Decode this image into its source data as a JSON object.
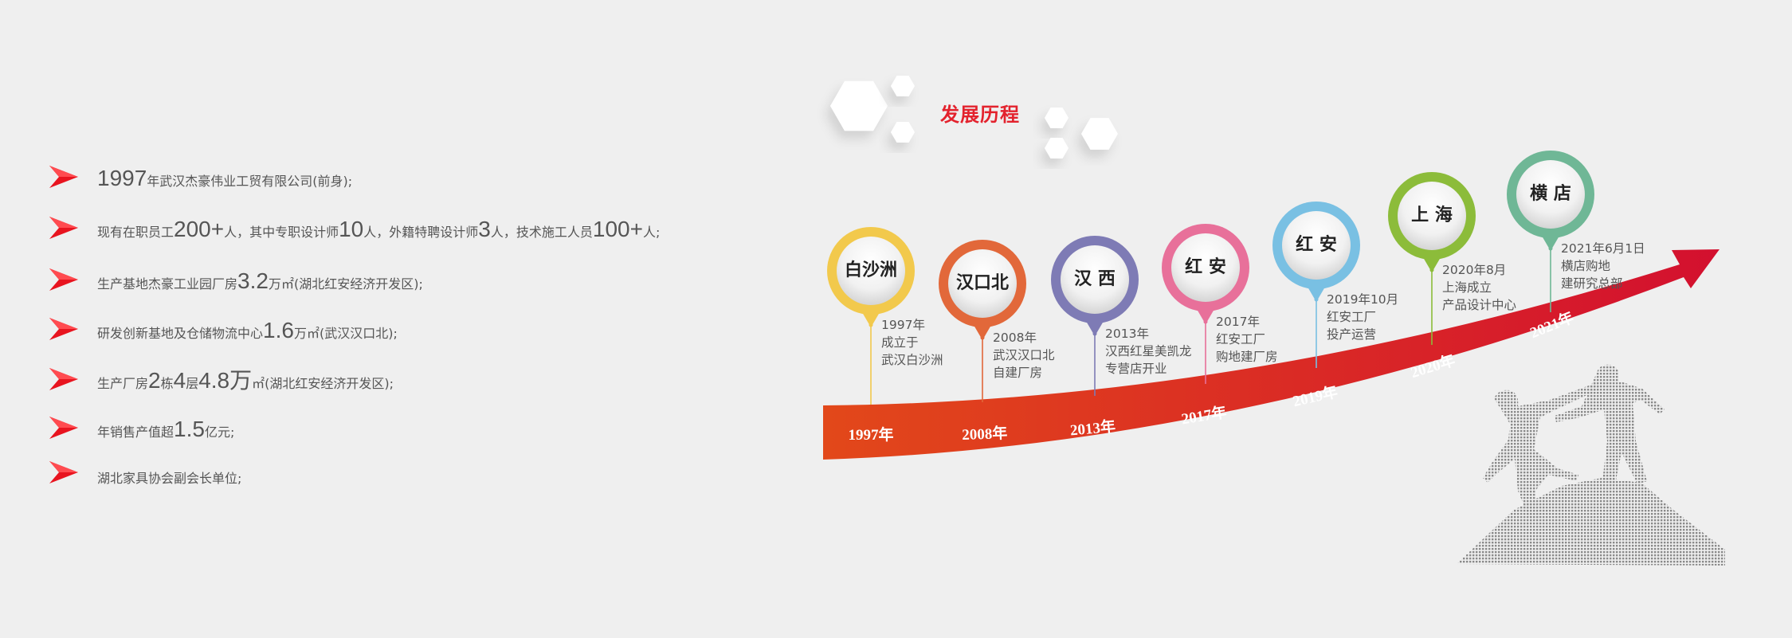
{
  "bullets": [
    {
      "parts": [
        {
          "t": "1997",
          "big": true
        },
        {
          "t": "年武汉杰豪伟业工贸有限公司(前身);"
        }
      ]
    },
    {
      "parts": [
        {
          "t": "现有在职员工"
        },
        {
          "t": "200+",
          "big": true
        },
        {
          "t": "人，其中专职设计师"
        },
        {
          "t": "10",
          "big": true
        },
        {
          "t": "人，外籍特聘设计师"
        },
        {
          "t": "3",
          "big": true
        },
        {
          "t": "人，技术施工人员"
        },
        {
          "t": "100+",
          "big": true
        },
        {
          "t": "人;"
        }
      ]
    },
    {
      "parts": [
        {
          "t": "生产基地杰豪工业园厂房"
        },
        {
          "t": "3.2",
          "big": true
        },
        {
          "t": "万㎡(湖北红安经济开发区);"
        }
      ]
    },
    {
      "parts": [
        {
          "t": "研发创新基地及仓储物流中心"
        },
        {
          "t": "1.6",
          "big": true
        },
        {
          "t": "万㎡(武汉汉口北);"
        }
      ]
    },
    {
      "parts": [
        {
          "t": "生产厂房"
        },
        {
          "t": "2",
          "big": true
        },
        {
          "t": "栋"
        },
        {
          "t": "4",
          "big": true
        },
        {
          "t": "层"
        },
        {
          "t": "4.8万",
          "big": true
        },
        {
          "t": "㎡(湖北红安经济开发区);"
        }
      ]
    },
    {
      "parts": [
        {
          "t": "年销售产值超"
        },
        {
          "t": "1.5",
          "big": true
        },
        {
          "t": "亿元;"
        }
      ]
    },
    {
      "parts": [
        {
          "t": "湖北家具协会副会长单位;"
        }
      ]
    }
  ],
  "timeline": {
    "title": "发展历程",
    "accent": "#e3222d",
    "items": [
      {
        "place": "白沙洲",
        "year": "1997年",
        "desc": [
          "1997年",
          "成立于",
          "武汉白沙洲"
        ],
        "color": "#f2c94c"
      },
      {
        "place": "汉口北",
        "year": "2008年",
        "desc": [
          "2008年",
          "武汉汉口北",
          "自建厂房"
        ],
        "color": "#e2683a"
      },
      {
        "place": "汉 西",
        "year": "2013年",
        "desc": [
          "2013年",
          "汉西红星美凯龙",
          "专营店开业"
        ],
        "color": "#7e7bb5"
      },
      {
        "place": "红 安",
        "year": "2017年",
        "desc": [
          "2017年",
          "红安工厂",
          "购地建厂房"
        ],
        "color": "#e8709a"
      },
      {
        "place": "红 安",
        "year": "2019年",
        "desc": [
          "2019年10月",
          "红安工厂",
          "投产运营"
        ],
        "color": "#79c0e3"
      },
      {
        "place": "上 海",
        "year": "2020年",
        "desc": [
          "2020年8月",
          "上海成立",
          "产品设计中心"
        ],
        "color": "#8cbc3a"
      },
      {
        "place": "横 店",
        "year": "2021年",
        "desc": [
          "2021年6月1日",
          "横店购地",
          "建研究总部"
        ],
        "color": "#6fb796"
      }
    ]
  }
}
